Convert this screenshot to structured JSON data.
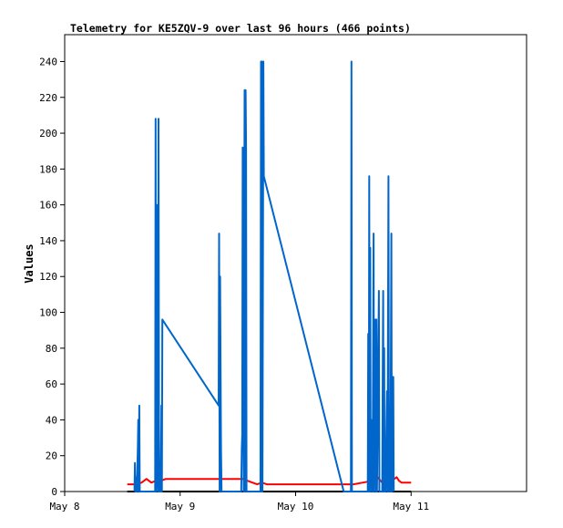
{
  "chart_data": {
    "type": "line",
    "title": "Telemetry for KE5ZQV-9 over last 96 hours (466 points)",
    "xlabel": "",
    "ylabel": "Values",
    "ylim": [
      0,
      255
    ],
    "yticks": [
      0,
      20,
      40,
      60,
      80,
      100,
      120,
      140,
      160,
      180,
      200,
      220,
      240
    ],
    "xlim": [
      0,
      96
    ],
    "xticks": [
      {
        "t": 0,
        "label": "May 8"
      },
      {
        "t": 24,
        "label": "May 9"
      },
      {
        "t": 48,
        "label": "May 10"
      },
      {
        "t": 72,
        "label": "May 11"
      }
    ],
    "grid": false,
    "series": [
      {
        "color": "#ff0000",
        "points": [
          [
            13,
            4
          ],
          [
            15,
            4
          ],
          [
            16,
            5
          ],
          [
            17,
            7
          ],
          [
            18,
            5
          ],
          [
            19,
            6
          ],
          [
            20,
            6
          ],
          [
            21,
            7
          ],
          [
            22,
            7
          ],
          [
            26,
            7
          ],
          [
            30,
            7
          ],
          [
            34,
            7
          ],
          [
            37,
            7
          ],
          [
            38,
            6
          ],
          [
            39,
            5
          ],
          [
            40,
            4
          ],
          [
            41,
            5
          ],
          [
            42,
            4
          ],
          [
            44,
            4
          ],
          [
            50,
            4
          ],
          [
            56,
            4
          ],
          [
            60,
            4
          ],
          [
            62,
            5
          ],
          [
            64,
            6
          ],
          [
            65,
            8
          ],
          [
            66,
            5
          ],
          [
            67,
            5
          ],
          [
            67.5,
            8
          ],
          [
            68,
            6
          ],
          [
            68.5,
            7
          ],
          [
            69,
            8
          ],
          [
            69.5,
            6
          ],
          [
            70,
            5
          ],
          [
            71,
            5
          ],
          [
            72,
            5
          ]
        ]
      },
      {
        "color": "#000000",
        "points": [
          [
            13,
            0
          ],
          [
            72,
            0
          ]
        ]
      },
      {
        "color": "#0066cc",
        "points": [
          [
            14.5,
            0
          ],
          [
            14.6,
            16
          ],
          [
            14.7,
            0
          ],
          [
            14.9,
            8
          ],
          [
            15.0,
            0
          ],
          [
            15.2,
            24
          ],
          [
            15.3,
            40
          ],
          [
            15.4,
            0
          ],
          [
            15.5,
            48
          ],
          [
            15.6,
            0
          ],
          [
            17.3,
            0
          ],
          [
            18.8,
            0
          ],
          [
            18.9,
            208
          ],
          [
            19.0,
            0
          ],
          [
            19.2,
            16
          ],
          [
            19.3,
            160
          ],
          [
            19.4,
            0
          ],
          [
            19.5,
            208
          ],
          [
            19.6,
            40
          ],
          [
            19.7,
            0
          ],
          [
            20.0,
            0
          ],
          [
            20.1,
            48
          ],
          [
            20.2,
            0
          ],
          [
            20.3,
            96
          ],
          [
            32.0,
            48
          ],
          [
            32.1,
            144
          ],
          [
            32.2,
            0
          ],
          [
            32.3,
            120
          ],
          [
            32.4,
            72
          ],
          [
            32.5,
            24
          ],
          [
            32.6,
            0
          ],
          [
            36.7,
            0
          ],
          [
            36.8,
            24
          ],
          [
            36.9,
            32
          ],
          [
            37.0,
            192
          ],
          [
            37.1,
            96
          ],
          [
            37.2,
            0
          ],
          [
            37.4,
            224
          ],
          [
            37.5,
            0
          ],
          [
            37.6,
            224
          ],
          [
            37.7,
            192
          ],
          [
            37.8,
            0
          ],
          [
            40.7,
            0
          ],
          [
            40.8,
            240
          ],
          [
            40.9,
            0
          ],
          [
            41.0,
            240
          ],
          [
            41.1,
            0
          ],
          [
            41.2,
            120
          ],
          [
            41.3,
            240
          ],
          [
            41.4,
            176
          ],
          [
            58.0,
            0
          ],
          [
            59.5,
            0
          ],
          [
            59.6,
            240
          ],
          [
            59.7,
            0
          ],
          [
            63.0,
            0
          ],
          [
            63.1,
            88
          ],
          [
            63.2,
            0
          ],
          [
            63.3,
            176
          ],
          [
            63.4,
            0
          ],
          [
            63.5,
            136
          ],
          [
            63.6,
            0
          ],
          [
            63.7,
            40
          ],
          [
            64.0,
            0
          ],
          [
            64.2,
            144
          ],
          [
            64.3,
            0
          ],
          [
            64.6,
            96
          ],
          [
            64.7,
            0
          ],
          [
            64.8,
            96
          ],
          [
            64.9,
            0
          ],
          [
            65.3,
            112
          ],
          [
            65.4,
            0
          ],
          [
            66.0,
            0
          ],
          [
            66.1,
            64
          ],
          [
            66.2,
            112
          ],
          [
            66.3,
            0
          ],
          [
            66.4,
            80
          ],
          [
            66.5,
            0
          ],
          [
            66.6,
            24
          ],
          [
            66.7,
            0
          ],
          [
            66.9,
            40
          ],
          [
            67.0,
            56
          ],
          [
            67.1,
            0
          ],
          [
            67.3,
            176
          ],
          [
            67.4,
            0
          ],
          [
            67.6,
            48
          ],
          [
            67.7,
            0
          ],
          [
            67.9,
            144
          ],
          [
            68.0,
            0
          ],
          [
            68.3,
            64
          ],
          [
            68.4,
            0
          ]
        ]
      }
    ]
  }
}
